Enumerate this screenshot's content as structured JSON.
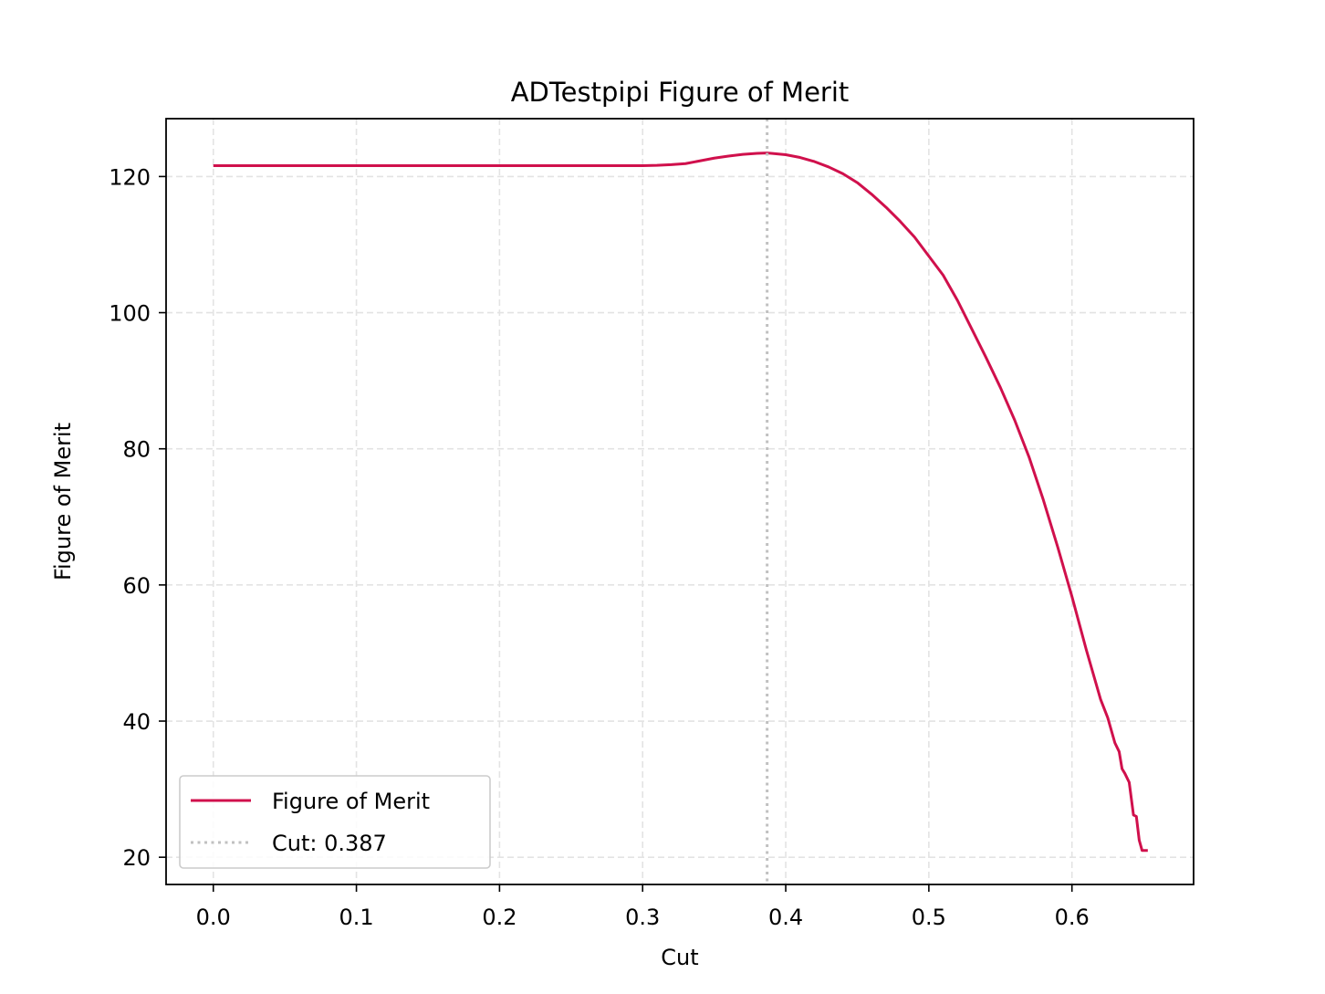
{
  "chart_data": {
    "type": "line",
    "title": "ADTestpipi Figure of Merit",
    "xlabel": "Cut",
    "ylabel": "Figure of Merit",
    "xlim": [
      -0.033,
      0.685
    ],
    "ylim": [
      16.0,
      128.5
    ],
    "x_ticks": [
      0.0,
      0.1,
      0.2,
      0.3,
      0.4,
      0.5,
      0.6
    ],
    "x_tick_labels": [
      "0.0",
      "0.1",
      "0.2",
      "0.3",
      "0.4",
      "0.5",
      "0.6"
    ],
    "y_ticks": [
      20,
      40,
      60,
      80,
      100,
      120
    ],
    "y_tick_labels": [
      "20",
      "40",
      "60",
      "80",
      "100",
      "120"
    ],
    "grid": true,
    "legend_position": "lower-left",
    "series": [
      {
        "name": "Figure of Merit",
        "color": "#d0104c",
        "style": "solid",
        "x": [
          0.0,
          0.05,
          0.1,
          0.15,
          0.2,
          0.25,
          0.3,
          0.31,
          0.32,
          0.33,
          0.34,
          0.35,
          0.36,
          0.37,
          0.38,
          0.387,
          0.39,
          0.4,
          0.41,
          0.42,
          0.43,
          0.44,
          0.45,
          0.46,
          0.47,
          0.48,
          0.49,
          0.5,
          0.51,
          0.52,
          0.53,
          0.54,
          0.55,
          0.56,
          0.57,
          0.58,
          0.59,
          0.6,
          0.61,
          0.62,
          0.625,
          0.63,
          0.633,
          0.635,
          0.637,
          0.64,
          0.643,
          0.645,
          0.647,
          0.649,
          0.651,
          0.653
        ],
        "y": [
          121.6,
          121.6,
          121.6,
          121.6,
          121.6,
          121.6,
          121.6,
          121.65,
          121.75,
          121.9,
          122.3,
          122.7,
          123.0,
          123.25,
          123.4,
          123.45,
          123.4,
          123.2,
          122.8,
          122.2,
          121.4,
          120.4,
          119.1,
          117.4,
          115.5,
          113.4,
          111.1,
          108.3,
          105.5,
          101.8,
          97.6,
          93.4,
          89.0,
          84.2,
          78.8,
          72.5,
          65.6,
          58.3,
          50.5,
          43.2,
          40.5,
          36.8,
          35.5,
          33.0,
          32.3,
          31.0,
          26.2,
          26.0,
          22.5,
          21.0,
          21.0,
          21.0
        ]
      },
      {
        "name": "Cut: 0.387",
        "color": "#c0c0c0",
        "style": "dotted",
        "vline_x": 0.387
      }
    ]
  }
}
